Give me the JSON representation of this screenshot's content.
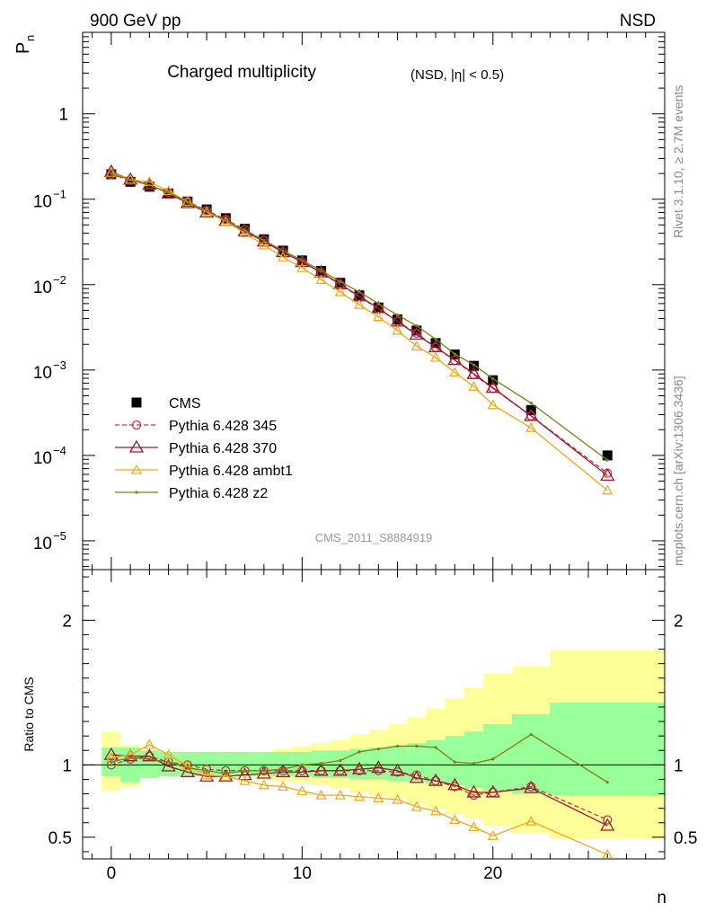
{
  "header": {
    "energy_label": "900 GeV pp",
    "process_label": "NSD",
    "title_main": "Charged multiplicity",
    "title_sub": "(NSD, |η| < 0.5)",
    "y_label_top": "P",
    "y_label_top_sub": "n",
    "y_label_bottom": "Ratio to CMS",
    "x_label": "n",
    "side_text_rivet": "Rivet 3.1.10, ≥ 2.7M events",
    "side_text_mcplots": "mcplots.cern.ch [arXiv:1306.3436]",
    "analysis_id": "CMS_2011_S8884919"
  },
  "chart_data": [
    {
      "type": "scatter",
      "name": "main",
      "y_scale": "log",
      "xlim": [
        -1.5,
        29
      ],
      "ylim": [
        4.6e-06,
        9
      ],
      "x_ticks": [
        0,
        10,
        20
      ],
      "y_tick_labels": [
        {
          "v": 1,
          "label": "1",
          "exp": ""
        },
        {
          "v": 0.1,
          "label": "10",
          "exp": "−1"
        },
        {
          "v": 0.01,
          "label": "10",
          "exp": "−2"
        },
        {
          "v": 0.001,
          "label": "10",
          "exp": "−3"
        },
        {
          "v": 0.0001,
          "label": "10",
          "exp": "−4"
        },
        {
          "v": 1e-05,
          "label": "10",
          "exp": "−5"
        }
      ],
      "legend_position": "bottom-left",
      "series": [
        {
          "name": "CMS",
          "color": "#000000",
          "marker": "square",
          "x": [
            0,
            1,
            2,
            3,
            4,
            5,
            6,
            7,
            8,
            9,
            10,
            11,
            12,
            13,
            14,
            15,
            16,
            17,
            18,
            19,
            20,
            22,
            26
          ],
          "y": [
            0.196,
            0.16,
            0.14,
            0.117,
            0.094,
            0.076,
            0.06,
            0.045,
            0.034,
            0.025,
            0.0192,
            0.0145,
            0.0105,
            0.0075,
            0.0054,
            0.0039,
            0.0029,
            0.00207,
            0.00152,
            0.00112,
            0.00076,
            0.00034,
            0.0001
          ]
        },
        {
          "name": "Pythia 6.428 345",
          "color": "#c8334d",
          "marker": "circle",
          "dashed": true,
          "x": [
            0,
            1,
            2,
            3,
            4,
            5,
            6,
            7,
            8,
            9,
            10,
            11,
            12,
            13,
            14,
            15,
            16,
            17,
            18,
            19,
            20,
            22,
            26
          ],
          "y": [
            0.196,
            0.166,
            0.148,
            0.12,
            0.094,
            0.074,
            0.058,
            0.044,
            0.033,
            0.024,
            0.0184,
            0.0138,
            0.01,
            0.0072,
            0.0052,
            0.0037,
            0.0027,
            0.00184,
            0.0013,
            0.00088,
            0.00061,
            0.00029,
            6.2e-05
          ]
        },
        {
          "name": "Pythia 6.428 370",
          "color": "#9b1b30",
          "marker": "triangle",
          "x": [
            0,
            1,
            2,
            3,
            4,
            5,
            6,
            7,
            8,
            9,
            10,
            11,
            12,
            13,
            14,
            15,
            16,
            17,
            18,
            19,
            20,
            22,
            26
          ],
          "y": [
            0.21,
            0.17,
            0.148,
            0.117,
            0.09,
            0.07,
            0.056,
            0.042,
            0.032,
            0.024,
            0.0184,
            0.0139,
            0.0101,
            0.0073,
            0.0053,
            0.0037,
            0.0026,
            0.00185,
            0.00131,
            0.0009,
            0.00062,
            0.00029,
            5.8e-05
          ]
        },
        {
          "name": "Pythia 6.428 ambt1",
          "color": "#f0a81a",
          "marker": "triangle-small",
          "x": [
            0,
            1,
            2,
            3,
            4,
            5,
            6,
            7,
            8,
            9,
            10,
            11,
            12,
            13,
            14,
            15,
            16,
            17,
            18,
            19,
            20,
            22,
            26
          ],
          "y": [
            0.205,
            0.17,
            0.16,
            0.125,
            0.094,
            0.071,
            0.055,
            0.04,
            0.029,
            0.021,
            0.0157,
            0.0114,
            0.0082,
            0.0058,
            0.0042,
            0.0029,
            0.0019,
            0.0014,
            0.00094,
            0.00064,
            0.00039,
            0.00021,
            3.9e-05
          ]
        },
        {
          "name": "Pythia 6.428 z2",
          "color": "#7f7f18",
          "marker": "dot",
          "x": [
            0,
            1,
            2,
            3,
            4,
            5,
            6,
            7,
            8,
            9,
            10,
            11,
            12,
            13,
            14,
            15,
            16,
            17,
            18,
            19,
            20,
            22,
            26
          ],
          "y": [
            0.2,
            0.168,
            0.146,
            0.12,
            0.092,
            0.073,
            0.056,
            0.043,
            0.033,
            0.025,
            0.0192,
            0.0146,
            0.0108,
            0.0082,
            0.006,
            0.0044,
            0.0033,
            0.0023,
            0.00154,
            0.00115,
            0.00079,
            0.00041,
            8.8e-05
          ]
        }
      ]
    },
    {
      "type": "line",
      "name": "ratio",
      "xlim": [
        -1.5,
        29
      ],
      "ylim": [
        0.35,
        2.35
      ],
      "x_ticks": [
        0,
        10,
        20
      ],
      "x_tick_labels": [
        "0",
        "10",
        "20"
      ],
      "y_ticks": [
        0.5,
        1,
        2
      ],
      "y_tick_labels": [
        "0.5",
        "1",
        "2"
      ],
      "reference_line": 1,
      "bands": {
        "x_edges": [
          -0.5,
          0.5,
          1.5,
          2.5,
          3.5,
          4.5,
          5.5,
          6.5,
          7.5,
          8.5,
          9.5,
          10.5,
          11.5,
          12.5,
          13.5,
          14.5,
          15.5,
          16.5,
          17.5,
          18.5,
          19.5,
          21,
          23,
          29
        ],
        "inner_color": "#99ff99",
        "outer_color": "#ffff99",
        "inner_lo": [
          0.92,
          0.88,
          0.91,
          0.92,
          0.92,
          0.92,
          0.92,
          0.92,
          0.92,
          0.92,
          0.92,
          0.91,
          0.91,
          0.9,
          0.9,
          0.89,
          0.88,
          0.87,
          0.86,
          0.84,
          0.82,
          0.8,
          0.79
        ],
        "inner_hi": [
          1.12,
          1.12,
          1.1,
          1.09,
          1.09,
          1.09,
          1.09,
          1.09,
          1.09,
          1.09,
          1.09,
          1.1,
          1.1,
          1.11,
          1.12,
          1.13,
          1.15,
          1.17,
          1.2,
          1.23,
          1.28,
          1.35,
          1.43
        ],
        "outer_lo": [
          0.82,
          0.85,
          0.91,
          0.93,
          0.93,
          0.93,
          0.93,
          0.92,
          0.9,
          0.89,
          0.88,
          0.86,
          0.84,
          0.81,
          0.79,
          0.77,
          0.73,
          0.7,
          0.66,
          0.63,
          0.58,
          0.53,
          0.49
        ],
        "outer_hi": [
          1.23,
          1.14,
          1.08,
          1.07,
          1.07,
          1.07,
          1.07,
          1.08,
          1.09,
          1.11,
          1.13,
          1.15,
          1.17,
          1.21,
          1.24,
          1.28,
          1.33,
          1.39,
          1.46,
          1.53,
          1.63,
          1.68,
          1.79
        ]
      },
      "series": [
        {
          "name": "Pythia 6.428 345",
          "color": "#c8334d",
          "marker": "circle",
          "dashed": true,
          "x": [
            0,
            1,
            2,
            3,
            4,
            5,
            6,
            7,
            8,
            9,
            10,
            11,
            12,
            13,
            14,
            15,
            16,
            17,
            18,
            19,
            20,
            22,
            26
          ],
          "y": [
            1.0,
            1.04,
            1.06,
            1.02,
            1.0,
            0.97,
            0.96,
            0.96,
            0.96,
            0.96,
            0.96,
            0.96,
            0.96,
            0.96,
            0.96,
            0.95,
            0.93,
            0.89,
            0.85,
            0.79,
            0.81,
            0.85,
            0.62
          ]
        },
        {
          "name": "Pythia 6.428 370",
          "color": "#9b1b30",
          "marker": "triangle",
          "x": [
            0,
            1,
            2,
            3,
            4,
            5,
            6,
            7,
            8,
            9,
            10,
            11,
            12,
            13,
            14,
            15,
            16,
            17,
            18,
            19,
            20,
            22,
            26
          ],
          "y": [
            1.07,
            1.06,
            1.06,
            0.99,
            0.95,
            0.92,
            0.92,
            0.93,
            0.94,
            0.95,
            0.95,
            0.96,
            0.96,
            0.97,
            0.98,
            0.96,
            0.91,
            0.89,
            0.86,
            0.81,
            0.81,
            0.84,
            0.58
          ]
        },
        {
          "name": "Pythia 6.428 ambt1",
          "color": "#f0a81a",
          "marker": "triangle-small",
          "x": [
            0,
            1,
            2,
            3,
            4,
            5,
            6,
            7,
            8,
            9,
            10,
            11,
            12,
            13,
            14,
            15,
            16,
            17,
            18,
            19,
            20,
            22,
            26
          ],
          "y": [
            1.05,
            1.07,
            1.14,
            1.07,
            0.99,
            0.93,
            0.92,
            0.89,
            0.86,
            0.85,
            0.82,
            0.79,
            0.79,
            0.78,
            0.77,
            0.76,
            0.71,
            0.68,
            0.62,
            0.57,
            0.51,
            0.61,
            0.38
          ]
        },
        {
          "name": "Pythia 6.428 z2",
          "color": "#7f7f18",
          "marker": "dot",
          "x": [
            0,
            1,
            2,
            3,
            4,
            5,
            6,
            7,
            8,
            9,
            10,
            11,
            12,
            13,
            14,
            15,
            16,
            17,
            18,
            19,
            20,
            22,
            26
          ],
          "y": [
            1.02,
            1.05,
            1.04,
            1.02,
            0.98,
            0.96,
            0.94,
            0.96,
            0.96,
            0.97,
            1.0,
            1.01,
            1.03,
            1.09,
            1.11,
            1.13,
            1.13,
            1.12,
            1.02,
            1.01,
            1.04,
            1.21,
            0.88
          ]
        }
      ]
    }
  ]
}
